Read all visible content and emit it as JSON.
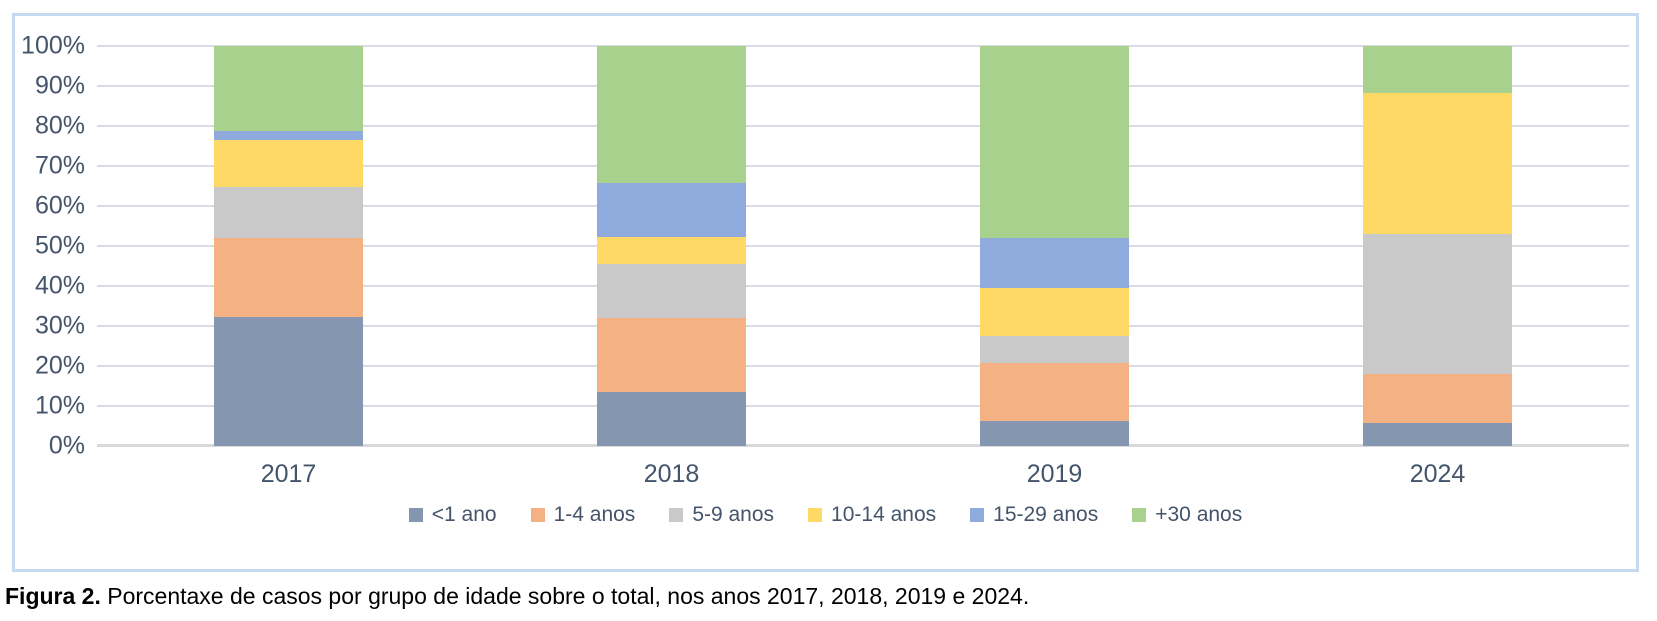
{
  "caption": {
    "label": "Figura 2.",
    "text": " Porcentaxe de casos por grupo de idade sobre o total, nos anos 2017, 2018, 2019 e 2024."
  },
  "style": {
    "frame_border_color": "#c5d9f0",
    "gridline_color": "#d9dce4",
    "axis_line_color": "#d9d9d9",
    "text_color": "#44546a",
    "caption_color": "#000000"
  },
  "chart_data": {
    "type": "bar",
    "stacked": true,
    "units": "percent",
    "title": "",
    "xlabel": "",
    "ylabel": "",
    "grid": true,
    "legend_position": "bottom",
    "categories": [
      "2017",
      "2018",
      "2019",
      "2024"
    ],
    "series": [
      {
        "name": "<1 ano",
        "color": "#8496b0",
        "values": [
          32.2,
          13.6,
          6.2,
          5.8
        ]
      },
      {
        "name": "1-4 anos",
        "color": "#f4b183",
        "values": [
          19.7,
          18.5,
          14.6,
          12.1
        ]
      },
      {
        "name": "5-9 anos",
        "color": "#c9c9c9",
        "values": [
          12.8,
          13.3,
          6.7,
          35.0
        ]
      },
      {
        "name": "10-14 anos",
        "color": "#ffd966",
        "values": [
          11.8,
          6.9,
          12.1,
          35.4
        ]
      },
      {
        "name": "15-29 anos",
        "color": "#8faadc",
        "values": [
          2.3,
          13.5,
          12.5,
          0.0
        ]
      },
      {
        "name": "+30 anos",
        "color": "#a9d18e",
        "values": [
          21.2,
          34.2,
          47.9,
          11.7
        ]
      }
    ],
    "y_axis": {
      "min": 0,
      "max": 100,
      "tick_step": 10,
      "ticks": [
        "0%",
        "10%",
        "20%",
        "30%",
        "40%",
        "50%",
        "60%",
        "70%",
        "80%",
        "90%",
        "100%"
      ]
    }
  }
}
